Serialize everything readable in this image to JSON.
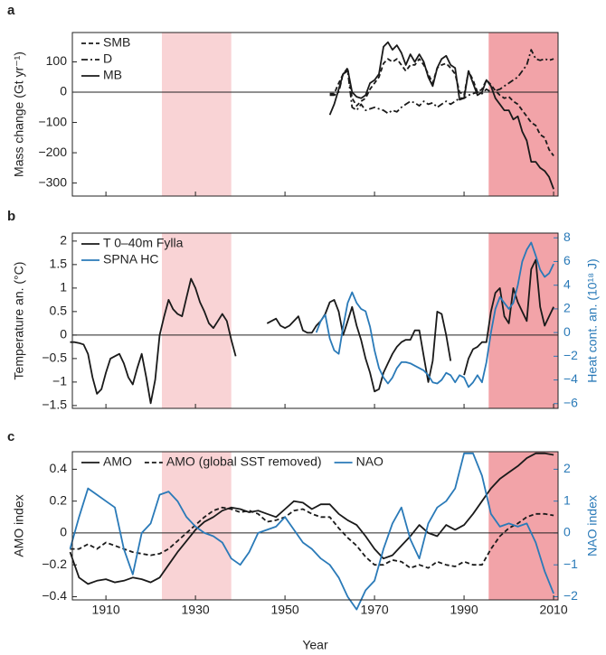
{
  "chart_data": [
    {
      "type": "line",
      "panel_label": "a",
      "ylabel": "Mass change (Gt yr⁻¹)",
      "xlim": [
        1902.5,
        2011
      ],
      "xticks": [
        1910,
        1930,
        1950,
        1970,
        1990,
        2010
      ],
      "xtick_labels": false,
      "ylim": [
        -343,
        197
      ],
      "yticks": [
        {
          "value": -300,
          "label": "−300"
        },
        {
          "value": -200,
          "label": "−200"
        },
        {
          "value": -100,
          "label": "−100"
        },
        0,
        100
      ],
      "legend": "upper-left",
      "legend_orientation": "vertical",
      "shading": [
        {
          "from": 1922.5,
          "to": 1938,
          "color": "#f9d3d5"
        },
        {
          "from": 1995.5,
          "to": 2011,
          "color": "#f2a3a8"
        }
      ],
      "x": [
        1960,
        1961,
        1962,
        1963,
        1964,
        1965,
        1966,
        1967,
        1968,
        1969,
        1970,
        1971,
        1972,
        1973,
        1974,
        1975,
        1976,
        1977,
        1978,
        1979,
        1980,
        1981,
        1982,
        1983,
        1984,
        1985,
        1986,
        1987,
        1988,
        1989,
        1990,
        1991,
        1992,
        1993,
        1994,
        1995,
        1996,
        1997,
        1998,
        1999,
        2000,
        2001,
        2002,
        2003,
        2004,
        2005,
        2006,
        2007,
        2008,
        2009,
        2010
      ],
      "series": [
        {
          "name": "SMB",
          "color": "#1a1a1a",
          "style": "dashed",
          "values": [
            -5,
            -5,
            30,
            60,
            80,
            -20,
            -45,
            -30,
            -20,
            10,
            30,
            50,
            95,
            110,
            100,
            110,
            90,
            70,
            90,
            90,
            110,
            90,
            60,
            30,
            80,
            90,
            95,
            80,
            60,
            0,
            -10,
            70,
            40,
            0,
            10,
            40,
            25,
            5,
            -10,
            -20,
            -15,
            -30,
            -40,
            -60,
            -80,
            -100,
            -110,
            -140,
            -150,
            -190,
            -210
          ]
        },
        {
          "name": "D",
          "color": "#1a1a1a",
          "style": "dashdot",
          "values": [
            -10,
            -10,
            0,
            60,
            70,
            -50,
            -60,
            -40,
            -60,
            -55,
            -50,
            -55,
            -60,
            -70,
            -60,
            -65,
            -50,
            -40,
            -30,
            -35,
            -45,
            -30,
            -40,
            -35,
            -50,
            -40,
            -30,
            -40,
            -30,
            -20,
            -20,
            -10,
            -5,
            0,
            -5,
            10,
            0,
            5,
            10,
            20,
            30,
            40,
            50,
            70,
            90,
            140,
            110,
            105,
            110,
            105,
            110
          ]
        },
        {
          "name": "MB",
          "color": "#1a1a1a",
          "style": "solid",
          "values": [
            -75,
            -40,
            10,
            60,
            75,
            0,
            -15,
            -20,
            -10,
            30,
            40,
            60,
            150,
            165,
            140,
            155,
            130,
            90,
            125,
            100,
            125,
            100,
            50,
            20,
            80,
            110,
            120,
            90,
            80,
            -25,
            -20,
            70,
            30,
            -10,
            0,
            40,
            20,
            -20,
            -40,
            -60,
            -60,
            -90,
            -80,
            -130,
            -160,
            -230,
            -230,
            -250,
            -260,
            -280,
            -320
          ]
        }
      ]
    },
    {
      "type": "line",
      "panel_label": "b",
      "ylabel": "Temperature an. (°C)",
      "y2label": "Heat cont. an. (10¹⁸ J)",
      "xlim": [
        1902.5,
        2011
      ],
      "xticks": [
        1910,
        1930,
        1950,
        1970,
        1990,
        2010
      ],
      "xtick_labels": false,
      "ylim": [
        -1.56,
        2.17
      ],
      "yticks": [
        {
          "value": -1.5,
          "label": "−1.5"
        },
        {
          "value": -1,
          "label": "−1"
        },
        {
          "value": -0.5,
          "label": "−0.5"
        },
        0,
        0.5,
        1,
        1.5,
        2
      ],
      "y2lim": [
        -6.4,
        8.4
      ],
      "y2ticks": [
        {
          "value": -6,
          "label": "−6"
        },
        {
          "value": -4,
          "label": "−4"
        },
        {
          "value": -2,
          "label": "−2"
        },
        0,
        2,
        4,
        6,
        8
      ],
      "legend": "upper-left",
      "legend_orientation": "vertical",
      "shading": [
        {
          "from": 1922.5,
          "to": 1938,
          "color": "#f9d3d5"
        },
        {
          "from": 1995.5,
          "to": 2011,
          "color": "#f2a3a8"
        }
      ],
      "series": [
        {
          "name": "T 0–40m Fylla",
          "color": "#1a1a1a",
          "style": "solid",
          "x": [
            1902,
            1903,
            1904,
            1905,
            1906,
            1907,
            1908,
            1909,
            1910,
            1911,
            1912,
            1913,
            1914,
            1915,
            1916,
            1917,
            1918,
            1919,
            1920,
            1921,
            1922,
            1923,
            1924,
            1925,
            1926,
            1927,
            1928,
            1929,
            1930,
            1931,
            1932,
            1933,
            1934,
            1935,
            1936,
            1937,
            1938,
            1939,
            1940,
            1941,
            1942,
            1943,
            1944,
            1945,
            1946,
            1947,
            1948,
            1949,
            1950,
            1951,
            1952,
            1953,
            1954,
            1955,
            1956,
            1957,
            1958,
            1959,
            1960,
            1961,
            1962,
            1963,
            1964,
            1965,
            1966,
            1967,
            1968,
            1969,
            1970,
            1971,
            1972,
            1973,
            1974,
            1975,
            1976,
            1977,
            1978,
            1979,
            1980,
            1981,
            1982,
            1983,
            1984,
            1985,
            1986,
            1987,
            1988,
            1989,
            1990,
            1991,
            1992,
            1993,
            1994,
            1995,
            1996,
            1997,
            1998,
            1999,
            2000,
            2001,
            2002,
            2003,
            2004,
            2005,
            2006,
            2007,
            2008,
            2009,
            2010
          ],
          "values": [
            -0.15,
            -0.15,
            -0.17,
            -0.2,
            -0.4,
            -0.9,
            -1.25,
            -1.15,
            -0.8,
            -0.5,
            -0.45,
            -0.4,
            -0.6,
            -0.9,
            -1.05,
            -0.7,
            -0.4,
            -0.9,
            -1.45,
            -0.95,
            0.0,
            0.4,
            0.75,
            0.55,
            0.45,
            0.4,
            0.8,
            1.2,
            1.0,
            0.7,
            0.5,
            0.25,
            0.15,
            0.3,
            0.45,
            0.3,
            -0.1,
            -0.45,
            null,
            null,
            null,
            null,
            null,
            null,
            0.25,
            0.3,
            0.35,
            0.2,
            0.15,
            0.2,
            0.3,
            0.4,
            0.1,
            0.05,
            0.05,
            0.2,
            0.3,
            0.45,
            0.7,
            0.75,
            0.5,
            0.0,
            0.3,
            0.6,
            0.2,
            -0.1,
            -0.5,
            -0.8,
            -1.2,
            -1.15,
            -0.8,
            -0.6,
            -0.4,
            -0.25,
            -0.15,
            -0.1,
            -0.1,
            0.1,
            0.1,
            -0.45,
            -1.0,
            -0.55,
            0.5,
            0.45,
            0.0,
            -0.55,
            null,
            null,
            -0.85,
            -0.5,
            -0.3,
            -0.25,
            -0.15,
            -0.15,
            0.5,
            0.9,
            1.0,
            0.4,
            0.25,
            1.0,
            0.7,
            0.5,
            0.3,
            1.4,
            1.6,
            0.6,
            0.2,
            0.4,
            0.6
          ]
        },
        {
          "name": "SPNA HC",
          "color": "#2a7ab8",
          "style": "solid",
          "axis": "y2",
          "x": [
            1957,
            1958,
            1959,
            1960,
            1961,
            1962,
            1963,
            1964,
            1965,
            1966,
            1967,
            1968,
            1969,
            1970,
            1971,
            1972,
            1973,
            1974,
            1975,
            1976,
            1977,
            1978,
            1979,
            1980,
            1981,
            1982,
            1983,
            1984,
            1985,
            1986,
            1987,
            1988,
            1989,
            1990,
            1991,
            1992,
            1993,
            1994,
            1995,
            1996,
            1997,
            1998,
            1999,
            2000,
            2001,
            2002,
            2003,
            2004,
            2005,
            2006,
            2007,
            2008,
            2009,
            2010
          ],
          "values": [
            0,
            1.0,
            1.5,
            -0.5,
            -1.5,
            -1.8,
            0.5,
            2.5,
            3.4,
            2.5,
            2.0,
            1.8,
            0.5,
            -1.5,
            -3.0,
            -3.8,
            -4.3,
            -3.8,
            -3.0,
            -2.5,
            -2.5,
            -2.6,
            -2.8,
            -3.0,
            -3.2,
            -3.6,
            -4.2,
            -4.3,
            -4.0,
            -3.4,
            -3.6,
            -4.2,
            -3.6,
            -3.8,
            -4.6,
            -4.2,
            -3.6,
            -4.2,
            -2.5,
            0.0,
            2.0,
            3.0,
            2.5,
            2.0,
            2.5,
            4.0,
            6.0,
            7.0,
            7.6,
            6.5,
            5.3,
            4.7,
            5.0,
            5.8
          ]
        }
      ]
    },
    {
      "type": "line",
      "panel_label": "c",
      "ylabel": "AMO index",
      "y2label": "NAO index",
      "xlabel": "Year",
      "xlim": [
        1902.5,
        2011
      ],
      "xticks": [
        1910,
        1930,
        1950,
        1970,
        1990,
        2010
      ],
      "xtick_labels": true,
      "ylim": [
        -0.42,
        0.51
      ],
      "yticks": [
        {
          "value": -0.4,
          "label": "−0.4"
        },
        {
          "value": -0.2,
          "label": "−0.2"
        },
        0,
        0.2,
        0.4
      ],
      "y2lim": [
        -2.1,
        2.55
      ],
      "y2ticks": [
        {
          "value": -2,
          "label": "−2"
        },
        {
          "value": -1,
          "label": "−1"
        },
        0,
        1,
        2
      ],
      "legend": "upper-left",
      "legend_orientation": "horizontal",
      "shading": [
        {
          "from": 1922.5,
          "to": 1938,
          "color": "#f9d3d5"
        },
        {
          "from": 1995.5,
          "to": 2011,
          "color": "#f2a3a8"
        }
      ],
      "x": [
        1902,
        1904,
        1906,
        1908,
        1910,
        1912,
        1914,
        1916,
        1918,
        1920,
        1922,
        1924,
        1926,
        1928,
        1930,
        1932,
        1934,
        1936,
        1938,
        1940,
        1942,
        1944,
        1946,
        1948,
        1950,
        1952,
        1954,
        1956,
        1958,
        1960,
        1962,
        1964,
        1966,
        1968,
        1970,
        1972,
        1974,
        1976,
        1978,
        1980,
        1982,
        1984,
        1986,
        1988,
        1990,
        1992,
        1994,
        1996,
        1998,
        2000,
        2002,
        2004,
        2006,
        2008,
        2010
      ],
      "series": [
        {
          "name": "AMO",
          "color": "#1a1a1a",
          "style": "solid",
          "values": [
            -0.12,
            -0.28,
            -0.32,
            -0.3,
            -0.29,
            -0.31,
            -0.3,
            -0.28,
            -0.29,
            -0.31,
            -0.28,
            -0.2,
            -0.12,
            -0.05,
            0.02,
            0.07,
            0.1,
            0.14,
            0.16,
            0.15,
            0.13,
            0.14,
            0.12,
            0.1,
            0.15,
            0.2,
            0.19,
            0.15,
            0.18,
            0.18,
            0.12,
            0.08,
            0.05,
            -0.02,
            -0.1,
            -0.16,
            -0.14,
            -0.08,
            -0.02,
            0.05,
            0.0,
            -0.02,
            0.05,
            0.02,
            0.05,
            0.12,
            0.2,
            0.28,
            0.34,
            0.38,
            0.42,
            0.47,
            0.5,
            0.5,
            0.49
          ]
        },
        {
          "name": "AMO (global SST removed)",
          "color": "#1a1a1a",
          "style": "dashed",
          "values": [
            -0.1,
            -0.1,
            -0.07,
            -0.1,
            -0.06,
            -0.08,
            -0.1,
            -0.12,
            -0.13,
            -0.14,
            -0.13,
            -0.1,
            -0.05,
            0,
            0.05,
            0.1,
            0.14,
            0.16,
            0.15,
            0.13,
            0.14,
            0.12,
            0.07,
            0.08,
            0.1,
            0.14,
            0.15,
            0.12,
            0.1,
            0.1,
            0.03,
            -0.03,
            -0.08,
            -0.15,
            -0.2,
            -0.2,
            -0.17,
            -0.18,
            -0.22,
            -0.2,
            -0.22,
            -0.18,
            -0.2,
            -0.21,
            -0.18,
            -0.2,
            -0.2,
            -0.1,
            -0.02,
            0.03,
            0.06,
            0.1,
            0.12,
            0.12,
            0.11
          ]
        },
        {
          "name": "NAO",
          "color": "#2a7ab8",
          "style": "solid",
          "axis": "y2",
          "values": [
            -0.5,
            0.5,
            1.4,
            1.2,
            1.0,
            0.8,
            -0.5,
            -1.3,
            0.0,
            0.3,
            1.2,
            1.3,
            1.0,
            0.5,
            0.2,
            0,
            -0.1,
            -0.3,
            -0.8,
            -1.0,
            -0.6,
            0,
            0.1,
            0.2,
            0.5,
            0.1,
            -0.3,
            -0.5,
            -0.8,
            -1.0,
            -1.4,
            -2.0,
            -2.4,
            -1.8,
            -1.5,
            -0.5,
            0.3,
            0.8,
            -0.2,
            -0.8,
            0.3,
            0.8,
            1.0,
            1.4,
            2.5,
            2.5,
            1.8,
            0.6,
            0.2,
            0.3,
            0.2,
            0.3,
            -0.3,
            -1.2,
            -1.9
          ]
        }
      ]
    }
  ]
}
